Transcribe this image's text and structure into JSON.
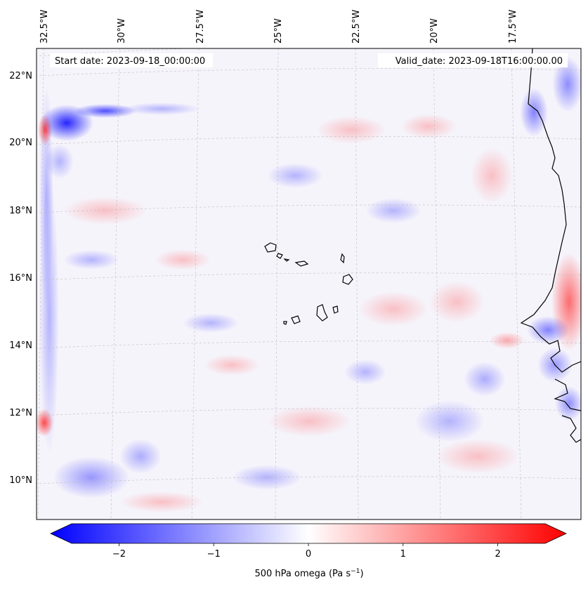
{
  "map": {
    "start_date": "Start date: 2023-09-18_00:00:00",
    "valid_date": "Valid_date: 2023-09-18T16:00:00.00",
    "lon_labels": [
      "32.5°W",
      "30°W",
      "27.5°W",
      "25°W",
      "22.5°W",
      "20°W",
      "17.5°W"
    ],
    "lat_labels": [
      "22°N",
      "20°N",
      "18°N",
      "16°N",
      "14°N",
      "12°N",
      "10°N"
    ]
  },
  "colorbar": {
    "label_main": "500 hPa omega (Pa s",
    "label_exp": "−1",
    "label_close": ")",
    "ticks": [
      "−2",
      "−1",
      "0",
      "1",
      "2"
    ],
    "tick_values": [
      -2,
      -1,
      0,
      1,
      2
    ],
    "range": [
      -2.5,
      2.5
    ],
    "colors": {
      "low": "#0000ff",
      "mid": "#ffffff",
      "high": "#ff0000"
    }
  }
}
